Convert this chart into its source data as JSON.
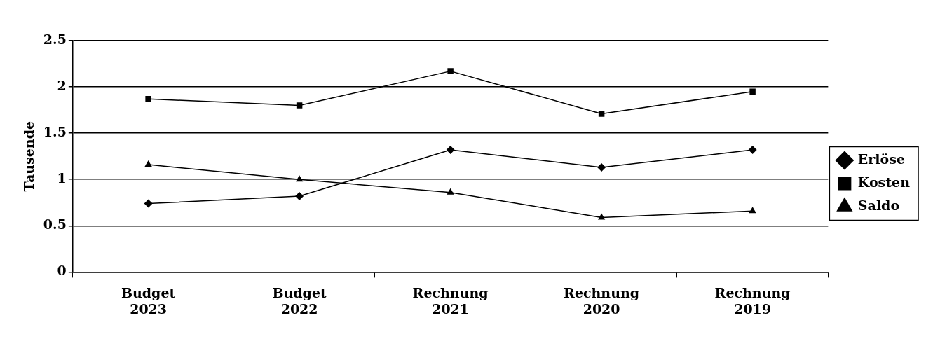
{
  "chart_data": {
    "type": "line",
    "ylabel": "Tausende",
    "categories": [
      "Budget 2023",
      "Budget 2022",
      "Rechnung 2021",
      "Rechnung 2020",
      "Rechnung 2019"
    ],
    "series": [
      {
        "name": "Erlöse",
        "color": "#000000",
        "marker": "diamond",
        "values": [
          0.74,
          0.82,
          1.32,
          1.13,
          1.32
        ]
      },
      {
        "name": "Kosten",
        "color": "#000000",
        "marker": "square",
        "values": [
          1.87,
          1.8,
          2.17,
          1.71,
          1.95
        ]
      },
      {
        "name": "Saldo",
        "color": "#000000",
        "marker": "triangle",
        "values": [
          1.16,
          1.0,
          0.86,
          0.59,
          0.66
        ]
      }
    ],
    "ylim": [
      0,
      2.5
    ],
    "yticks": [
      0,
      0.5,
      1,
      1.5,
      2,
      2.5
    ],
    "grid": "y",
    "legend": "right",
    "line_style": "solid"
  }
}
